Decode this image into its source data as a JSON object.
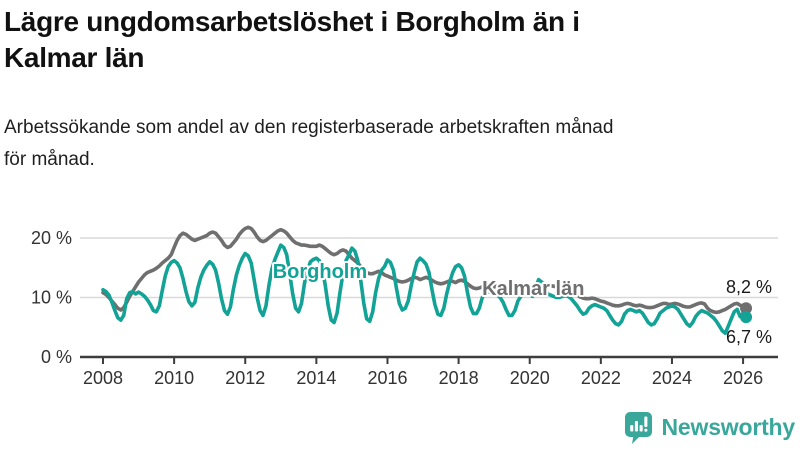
{
  "header": {
    "title_lines": [
      "Lägre ungdomsarbetslöshet i Borgholm än i",
      "Kalmar län"
    ],
    "subtitle_lines": [
      "Arbetssökande som andel av den registerbaserade arbetskraften månad",
      "för månad."
    ]
  },
  "chart_data": {
    "type": "line",
    "unit": "%",
    "x_start_year": 2008,
    "x_step_months": 1,
    "x_end": "2026-02",
    "xticks": [
      2008,
      2010,
      2012,
      2014,
      2016,
      2018,
      2020,
      2022,
      2024,
      2026
    ],
    "yticks": [
      {
        "value": 0,
        "label": "0 %"
      },
      {
        "value": 10,
        "label": "10 %"
      },
      {
        "value": 20,
        "label": "20 %"
      }
    ],
    "ylim": [
      0,
      24
    ],
    "grid": true,
    "series": [
      {
        "name": "Kalmar län",
        "color": "#6f6f6f",
        "end_label": "8,2 %",
        "end_value": 8.2,
        "values": [
          10.8,
          10.5,
          10.0,
          9.4,
          8.8,
          8.2,
          7.9,
          8.3,
          9.2,
          10.2,
          11.0,
          11.8,
          12.6,
          13.2,
          13.8,
          14.2,
          14.4,
          14.6,
          14.9,
          15.3,
          15.8,
          16.2,
          16.6,
          17.2,
          18.4,
          19.6,
          20.4,
          20.8,
          20.6,
          20.2,
          19.8,
          19.6,
          19.8,
          20.0,
          20.2,
          20.4,
          20.8,
          21.0,
          20.8,
          20.2,
          19.6,
          18.8,
          18.4,
          18.6,
          19.2,
          19.8,
          20.6,
          21.2,
          21.6,
          21.8,
          21.6,
          21.0,
          20.2,
          19.6,
          19.4,
          19.6,
          20.0,
          20.4,
          20.8,
          21.2,
          21.4,
          21.2,
          20.8,
          20.2,
          19.6,
          19.2,
          19.0,
          18.8,
          18.8,
          18.7,
          18.6,
          18.6,
          18.6,
          18.8,
          18.6,
          18.2,
          17.8,
          17.4,
          17.2,
          17.4,
          17.8,
          18.0,
          17.8,
          17.2,
          16.6,
          16.2,
          15.8,
          15.2,
          14.6,
          14.2,
          14.0,
          14.0,
          14.2,
          14.4,
          14.2,
          13.8,
          13.6,
          13.4,
          13.2,
          12.9,
          12.7,
          12.6,
          12.7,
          12.9,
          13.2,
          13.4,
          13.3,
          13.0,
          13.2,
          13.4,
          13.2,
          12.9,
          12.6,
          12.4,
          12.3,
          12.4,
          12.6,
          12.8,
          12.7,
          12.5,
          12.8,
          12.9,
          12.7,
          12.3,
          11.9,
          11.6,
          11.5,
          11.6,
          11.8,
          12.0,
          11.9,
          11.7,
          11.8,
          11.9,
          11.7,
          11.4,
          11.1,
          10.9,
          10.8,
          10.9,
          11.1,
          11.3,
          11.2,
          11.0,
          11.0,
          11.0,
          11.6,
          12.3,
          12.4,
          12.3,
          12.1,
          12.0,
          11.9,
          11.8,
          11.6,
          11.4,
          11.3,
          11.2,
          11.0,
          10.7,
          10.4,
          10.1,
          9.9,
          9.8,
          9.8,
          9.9,
          9.8,
          9.6,
          9.4,
          9.3,
          9.1,
          8.9,
          8.7,
          8.6,
          8.6,
          8.7,
          8.9,
          9.0,
          8.9,
          8.7,
          8.6,
          8.7,
          8.6,
          8.4,
          8.3,
          8.3,
          8.4,
          8.6,
          8.8,
          9.0,
          9.0,
          8.8,
          8.9,
          9.0,
          8.9,
          8.7,
          8.5,
          8.4,
          8.4,
          8.6,
          8.8,
          9.0,
          9.1,
          8.9,
          8.2,
          7.8,
          7.6,
          7.5,
          7.6,
          7.8,
          8.0,
          8.3,
          8.6,
          8.9,
          9.0,
          8.7,
          8.5,
          8.2
        ]
      },
      {
        "name": "Borgholm",
        "color": "#12a296",
        "end_label": "6,7 %",
        "end_value": 6.7,
        "values": [
          11.3,
          11.0,
          10.4,
          9.2,
          7.8,
          6.6,
          6.2,
          7.0,
          9.8,
          10.8,
          11.0,
          10.6,
          10.9,
          10.6,
          10.2,
          9.6,
          8.8,
          7.8,
          7.6,
          8.6,
          11.2,
          13.6,
          15.2,
          15.9,
          16.2,
          15.8,
          15.0,
          13.2,
          11.0,
          9.3,
          8.6,
          9.2,
          11.6,
          13.4,
          14.6,
          15.4,
          16.0,
          15.6,
          14.6,
          12.4,
          9.8,
          7.8,
          7.2,
          8.4,
          11.4,
          13.8,
          15.4,
          16.6,
          17.4,
          17.0,
          15.8,
          13.0,
          10.0,
          7.8,
          7.0,
          8.6,
          12.0,
          14.8,
          16.4,
          17.6,
          18.8,
          18.4,
          17.2,
          14.0,
          10.6,
          8.2,
          7.6,
          9.0,
          12.4,
          14.6,
          16.0,
          16.4,
          16.6,
          16.2,
          15.0,
          12.0,
          8.6,
          6.2,
          5.8,
          7.4,
          11.0,
          14.0,
          16.2,
          17.2,
          18.3,
          17.8,
          16.2,
          12.8,
          9.0,
          6.4,
          6.0,
          7.6,
          10.8,
          13.2,
          14.6,
          15.2,
          16.3,
          15.9,
          14.6,
          11.6,
          9.0,
          7.9,
          8.2,
          9.4,
          12.0,
          14.2,
          16.0,
          16.6,
          16.2,
          15.6,
          14.2,
          11.4,
          8.8,
          7.2,
          7.0,
          8.2,
          10.6,
          12.6,
          14.2,
          15.2,
          15.5,
          15.0,
          13.6,
          10.8,
          8.4,
          7.3,
          7.3,
          8.2,
          10.0,
          10.8,
          11.0,
          10.8,
          10.6,
          10.4,
          10.0,
          9.2,
          8.0,
          7.0,
          7.0,
          7.8,
          9.4,
          10.2,
          10.6,
          10.4,
          10.4,
          10.2,
          11.6,
          13.0,
          12.6,
          11.6,
          10.6,
          10.4,
          10.2,
          10.0,
          10.0,
          10.2,
          10.3,
          10.2,
          9.8,
          9.2,
          8.6,
          7.8,
          7.2,
          7.4,
          8.2,
          8.6,
          8.8,
          8.6,
          8.4,
          8.2,
          7.8,
          7.0,
          6.2,
          5.6,
          5.4,
          6.0,
          7.2,
          7.8,
          8.0,
          7.8,
          7.6,
          7.8,
          7.4,
          6.6,
          5.8,
          5.4,
          5.6,
          6.4,
          7.4,
          7.8,
          8.2,
          8.4,
          8.6,
          8.4,
          8.0,
          7.2,
          6.4,
          5.6,
          5.2,
          5.8,
          6.8,
          7.4,
          7.8,
          7.6,
          7.4,
          7.0,
          6.6,
          6.0,
          5.2,
          4.4,
          4.0,
          5.2,
          6.4,
          7.6,
          8.0,
          6.8,
          7.4,
          6.7
        ]
      }
    ],
    "series_labels": [
      {
        "text": "Borgholm",
        "color": "#12a296",
        "year": 2014.1,
        "value": 13.3
      },
      {
        "text": "Kalmar län",
        "color": "#6f6f6f",
        "year": 2020.1,
        "value": 10.4
      }
    ]
  },
  "footer": {
    "brand": "Newsworthy",
    "brand_color": "#3aa79b"
  },
  "colors": {
    "background": "#ffffff",
    "title": "#111111",
    "grid": "#d9d9d9",
    "axis": "#3d3d3d",
    "tick_text": "#333333",
    "annotation_text": "#1a1a1a",
    "borgholm": "#12a296",
    "kalmar": "#6f6f6f"
  }
}
